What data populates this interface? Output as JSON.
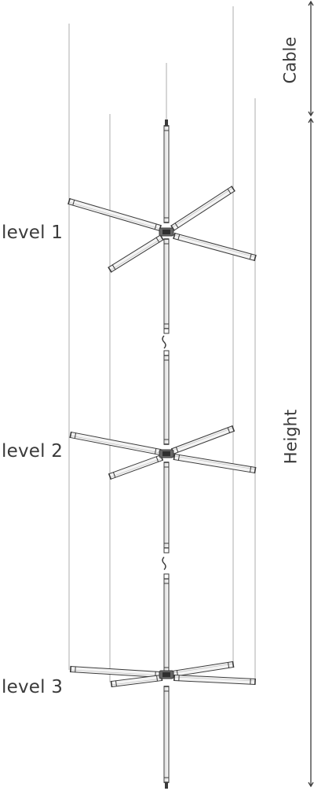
{
  "labels": {
    "level_1": "level 1",
    "level_2": "level 2",
    "level_3": "level 3",
    "cable": "Cable",
    "height": "Height"
  },
  "colors": {
    "line": "#3a3a3a",
    "cable": "#9a9a9a",
    "tube_fill": "#f4f4f4"
  }
}
